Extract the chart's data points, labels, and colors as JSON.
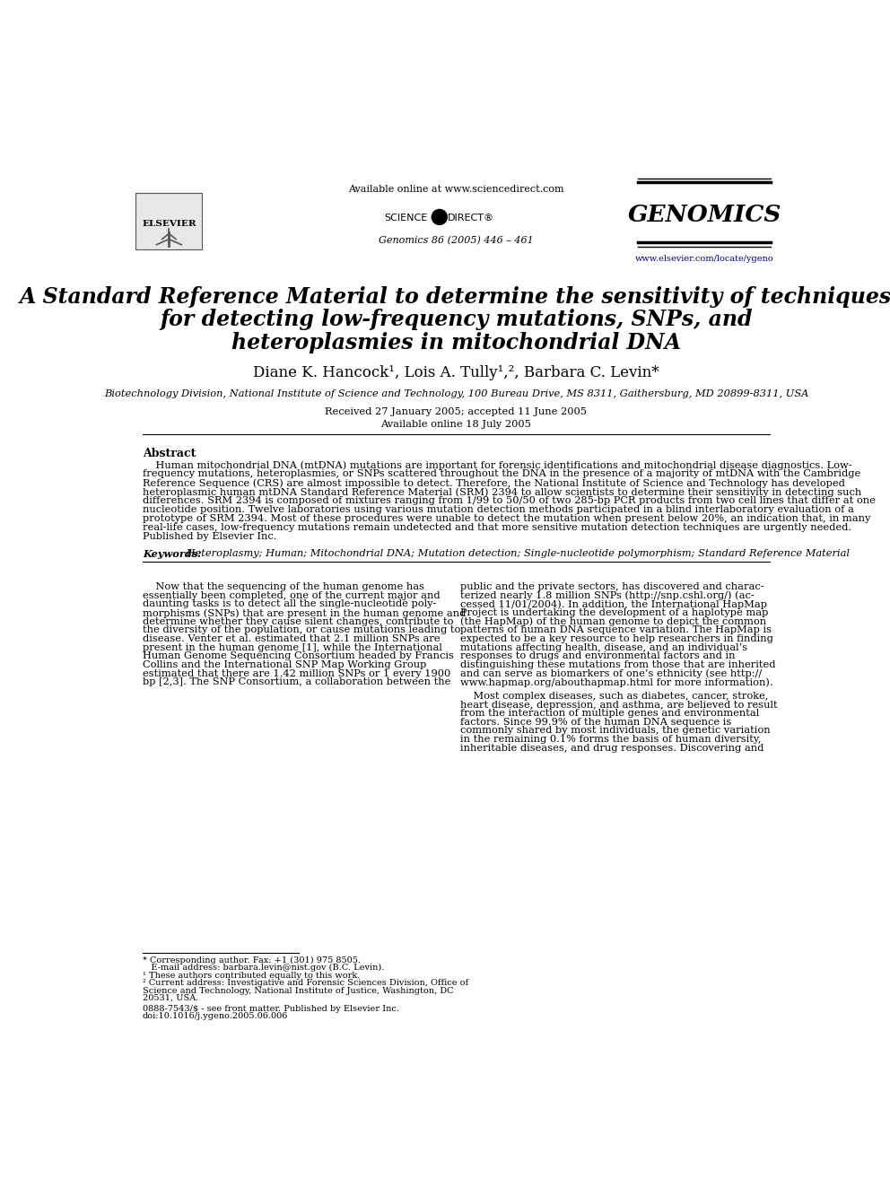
{
  "bg_color": "#ffffff",
  "title_line1": "A Standard Reference Material to determine the sensitivity of techniques",
  "title_line2": "for detecting low-frequency mutations, SNPs, and",
  "title_line3": "heteroplasmies in mitochondrial DNA",
  "affiliation": "Biotechnology Division, National Institute of Science and Technology, 100 Bureau Drive, MS 8311, Gaithersburg, MD 20899-8311, USA",
  "received": "Received 27 January 2005; accepted 11 June 2005",
  "available": "Available online 18 July 2005",
  "header_center_line1": "Available online at www.sciencedirect.com",
  "header_center_line3": "Genomics 86 (2005) 446 – 461",
  "journal_name": "GENOMICS",
  "journal_url": "www.elsevier.com/locate/ygeno",
  "abstract_title": "Abstract",
  "keywords_label": "Keywords:",
  "keywords_text": " Heteroplasmy; Human; Mitochondrial DNA; Mutation detection; Single-nucleotide polymorphism; Standard Reference Material",
  "footnote1": "* Corresponding author. Fax: +1 (301) 975 8505.",
  "footnote2": "   E-mail address: barbara.levin@nist.gov (B.C. Levin).",
  "footnote3": "¹ These authors contributed equally to this work.",
  "footnote4": "² Current address: Investigative and Forensic Sciences Division, Office of",
  "footnote5": "Science and Technology, National Institute of Justice, Washington, DC",
  "footnote6": "20531, USA.",
  "footnote_bottom1": "0888-7543/$ - see front matter. Published by Elsevier Inc.",
  "footnote_bottom2": "doi:10.1016/j.ygeno.2005.06.006",
  "abs_lines": [
    "    Human mitochondrial DNA (mtDNA) mutations are important for forensic identifications and mitochondrial disease diagnostics. Low-",
    "frequency mutations, heteroplasmies, or SNPs scattered throughout the DNA in the presence of a majority of mtDNA with the Cambridge",
    "Reference Sequence (CRS) are almost impossible to detect. Therefore, the National Institute of Science and Technology has developed",
    "heteroplasmic human mtDNA Standard Reference Material (SRM) 2394 to allow scientists to determine their sensitivity in detecting such",
    "differences. SRM 2394 is composed of mixtures ranging from 1/99 to 50/50 of two 285-bp PCR products from two cell lines that differ at one",
    "nucleotide position. Twelve laboratories using various mutation detection methods participated in a blind interlaboratory evaluation of a",
    "prototype of SRM 2394. Most of these procedures were unable to detect the mutation when present below 20%, an indication that, in many",
    "real-life cases, low-frequency mutations remain undetected and that more sensitive mutation detection techniques are urgently needed.",
    "Published by Elsevier Inc."
  ],
  "col1_lines": [
    "    Now that the sequencing of the human genome has",
    "essentially been completed, one of the current major and",
    "daunting tasks is to detect all the single-nucleotide poly-",
    "morphisms (SNPs) that are present in the human genome and",
    "determine whether they cause silent changes, contribute to",
    "the diversity of the population, or cause mutations leading to",
    "disease. Venter et al. estimated that 2.1 million SNPs are",
    "present in the human genome [1], while the International",
    "Human Genome Sequencing Consortium headed by Francis",
    "Collins and the International SNP Map Working Group",
    "estimated that there are 1.42 million SNPs or 1 every 1900",
    "bp [2,3]. The SNP Consortium, a collaboration between the"
  ],
  "col2_lines_a": [
    "public and the private sectors, has discovered and charac-",
    "terized nearly 1.8 million SNPs (http://snp.cshl.org/) (ac-",
    "cessed 11/01/2004). In addition, the International HapMap",
    "Project is undertaking the development of a haplotype map",
    "(the HapMap) of the human genome to depict the common",
    "patterns of human DNA sequence variation. The HapMap is",
    "expected to be a key resource to help researchers in finding",
    "mutations affecting health, disease, and an individual’s",
    "responses to drugs and environmental factors and in",
    "distinguishing these mutations from those that are inherited",
    "and can serve as biomarkers of one’s ethnicity (see http://",
    "www.hapmap.org/abouthapmap.html for more information)."
  ],
  "col2_lines_b": [
    "    Most complex diseases, such as diabetes, cancer, stroke,",
    "heart disease, depression, and asthma, are believed to result",
    "from the interaction of multiple genes and environmental",
    "factors. Since 99.9% of the human DNA sequence is",
    "commonly shared by most individuals, the genetic variation",
    "in the remaining 0.1% forms the basis of human diversity,",
    "inheritable diseases, and drug responses. Discovering and"
  ]
}
